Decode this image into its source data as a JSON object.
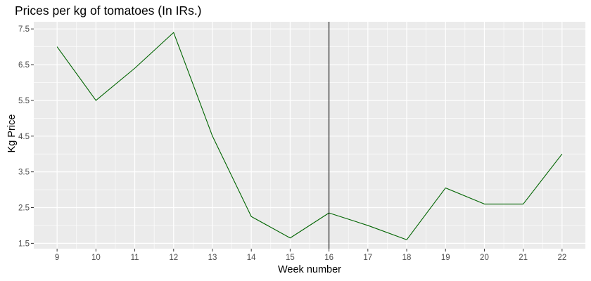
{
  "chart_data": {
    "type": "line",
    "title": "Prices per kg of tomatoes (In IRs.)",
    "xlabel": "Week number",
    "ylabel": "Kg Price",
    "x": [
      9,
      10,
      11,
      12,
      13,
      14,
      15,
      16,
      17,
      18,
      19,
      20,
      21,
      22
    ],
    "series": [
      {
        "values": [
          7.0,
          5.5,
          6.4,
          7.4,
          4.5,
          2.25,
          1.65,
          2.35,
          2.0,
          1.6,
          3.05,
          2.6,
          2.6,
          4.0
        ],
        "color": "#006400"
      }
    ],
    "xlim": [
      8.4,
      22.6
    ],
    "ylim": [
      1.35,
      7.7
    ],
    "xticks": [
      "9",
      "10",
      "11",
      "12",
      "13",
      "14",
      "15",
      "16",
      "17",
      "18",
      "19",
      "20",
      "21",
      "22"
    ],
    "yticks": [
      "1.5",
      "2.5",
      "3.5",
      "4.5",
      "5.5",
      "6.5",
      "7.5"
    ],
    "vline": 16,
    "vline_color": "#000000",
    "grid": true,
    "panel_background": "#ebebeb",
    "grid_color": "#ffffff"
  }
}
